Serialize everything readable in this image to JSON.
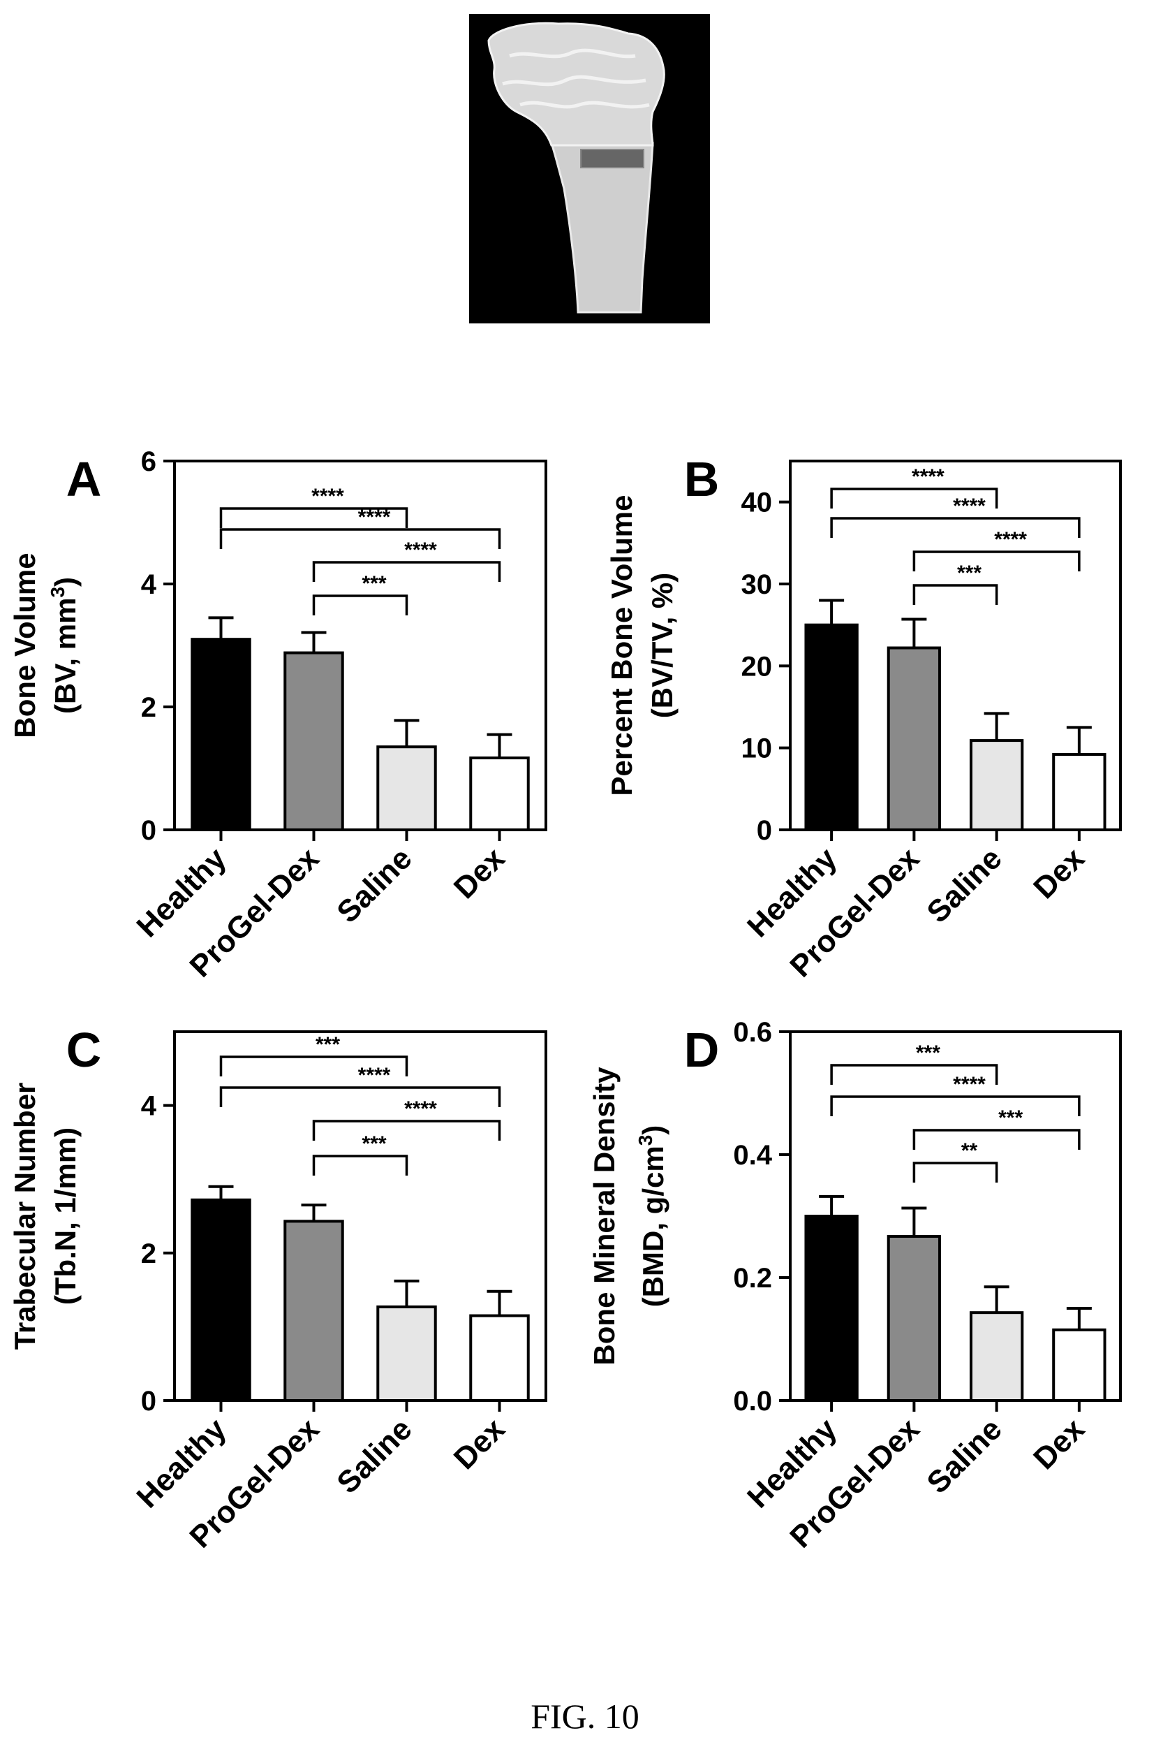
{
  "figure_caption": "FIG. 10",
  "top_image": {
    "kind": "micro-CT rendering of proximal tibia with shaded region of interest"
  },
  "colors": {
    "Healthy": "#000000",
    "ProGel-Dex": "#8a8a8a",
    "Saline": "#e6e6e6",
    "Dex": "#ffffff",
    "stroke": "#000000"
  },
  "chart_data": [
    {
      "panel_letter": "A",
      "type": "bar",
      "categories": [
        "Healthy",
        "ProGel-Dex",
        "Saline",
        "Dex"
      ],
      "values": [
        3.1,
        2.88,
        1.35,
        1.17
      ],
      "errors": [
        0.35,
        0.33,
        0.43,
        0.38
      ],
      "ylabel_line1": "Bone Volume",
      "ylabel_line2": "(BV, mm",
      "ylabel_sup": "3",
      "ylabel_end": ")",
      "ylim": [
        0,
        6
      ],
      "yticks": [
        0,
        2,
        4,
        6
      ],
      "ytick_labels": [
        "0",
        "2",
        "4",
        "6"
      ],
      "grid": false,
      "significance": [
        {
          "from": 0,
          "to": 2,
          "label": "****"
        },
        {
          "from": 0,
          "to": 3,
          "label": "****"
        },
        {
          "from": 1,
          "to": 3,
          "label": "****"
        },
        {
          "from": 1,
          "to": 2,
          "label": "***"
        }
      ]
    },
    {
      "panel_letter": "B",
      "type": "bar",
      "categories": [
        "Healthy",
        "ProGel-Dex",
        "Saline",
        "Dex"
      ],
      "values": [
        25,
        22.2,
        10.9,
        9.2
      ],
      "errors": [
        3.0,
        3.5,
        3.3,
        3.3
      ],
      "ylabel_line1": "Percent Bone Volume",
      "ylabel_line2": "(BV/TV, %)",
      "ylabel_sup": "",
      "ylabel_end": "",
      "ylim": [
        0,
        45
      ],
      "yticks": [
        0,
        10,
        20,
        30,
        40
      ],
      "ytick_labels": [
        "0",
        "10",
        "20",
        "30",
        "40"
      ],
      "grid": false,
      "significance": [
        {
          "from": 0,
          "to": 2,
          "label": "****"
        },
        {
          "from": 0,
          "to": 3,
          "label": "****"
        },
        {
          "from": 1,
          "to": 3,
          "label": "****"
        },
        {
          "from": 1,
          "to": 2,
          "label": "***"
        }
      ]
    },
    {
      "panel_letter": "C",
      "type": "bar",
      "categories": [
        "Healthy",
        "ProGel-Dex",
        "Saline",
        "Dex"
      ],
      "values": [
        2.72,
        2.43,
        1.27,
        1.15
      ],
      "errors": [
        0.18,
        0.22,
        0.35,
        0.33
      ],
      "ylabel_line1": "Trabecular Number",
      "ylabel_line2": "(Tb.N, 1/mm)",
      "ylabel_sup": "",
      "ylabel_end": "",
      "ylim": [
        0,
        5
      ],
      "yticks": [
        0,
        2,
        4
      ],
      "ytick_labels": [
        "0",
        "2",
        "4"
      ],
      "grid": false,
      "significance": [
        {
          "from": 0,
          "to": 2,
          "label": "***"
        },
        {
          "from": 0,
          "to": 3,
          "label": "****"
        },
        {
          "from": 1,
          "to": 3,
          "label": "****"
        },
        {
          "from": 1,
          "to": 2,
          "label": "***"
        }
      ]
    },
    {
      "panel_letter": "D",
      "type": "bar",
      "categories": [
        "Healthy",
        "ProGel-Dex",
        "Saline",
        "Dex"
      ],
      "values": [
        0.3,
        0.267,
        0.143,
        0.115
      ],
      "errors": [
        0.032,
        0.046,
        0.042,
        0.035
      ],
      "ylabel_line1": "Bone Mineral Density",
      "ylabel_line2": "(BMD, g/cm",
      "ylabel_sup": "3",
      "ylabel_end": ")",
      "ylim": [
        0,
        0.6
      ],
      "yticks": [
        0,
        0.2,
        0.4,
        0.6
      ],
      "ytick_labels": [
        "0.0",
        "0.2",
        "0.4",
        "0.6"
      ],
      "grid": false,
      "significance": [
        {
          "from": 0,
          "to": 2,
          "label": "***"
        },
        {
          "from": 0,
          "to": 3,
          "label": "****"
        },
        {
          "from": 1,
          "to": 3,
          "label": "***"
        },
        {
          "from": 1,
          "to": 2,
          "label": "**"
        }
      ]
    }
  ]
}
